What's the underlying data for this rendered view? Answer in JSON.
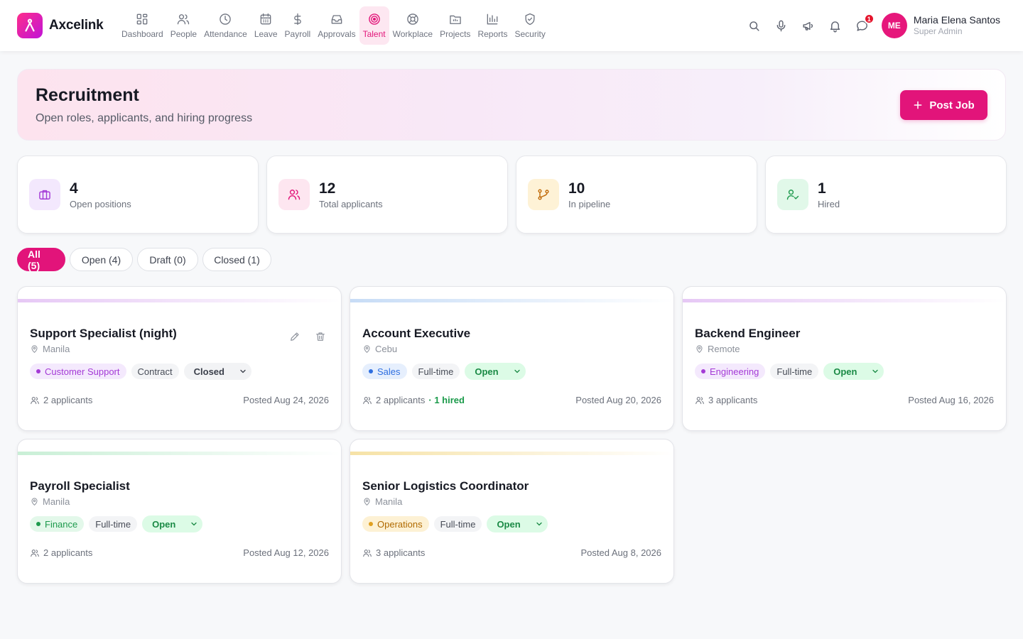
{
  "brand": {
    "name": "Axcelink"
  },
  "nav": [
    {
      "label": "Dashboard",
      "icon": "dashboard-icon"
    },
    {
      "label": "People",
      "icon": "people-icon"
    },
    {
      "label": "Attendance",
      "icon": "clock-icon"
    },
    {
      "label": "Leave",
      "icon": "calendar-icon"
    },
    {
      "label": "Payroll",
      "icon": "dollar-icon"
    },
    {
      "label": "Approvals",
      "icon": "inbox-icon"
    },
    {
      "label": "Talent",
      "icon": "target-icon",
      "active": true
    },
    {
      "label": "Workplace",
      "icon": "lifebuoy-icon"
    },
    {
      "label": "Projects",
      "icon": "folder-icon"
    },
    {
      "label": "Reports",
      "icon": "bar-chart-icon"
    },
    {
      "label": "Security",
      "icon": "shield-check-icon"
    }
  ],
  "topbar": {
    "message_badge": "1",
    "user": {
      "initials": "ME",
      "name": "Maria Elena Santos",
      "role": "Super Admin"
    }
  },
  "hero": {
    "title": "Recruitment",
    "subtitle": "Open roles, applicants, and hiring progress",
    "post_button": "Post Job"
  },
  "stats": [
    {
      "value": "4",
      "label": "Open positions",
      "icon": "briefcase-icon",
      "color": "#a43ad6",
      "bg": "#f3e8fd"
    },
    {
      "value": "12",
      "label": "Total applicants",
      "icon": "users-icon",
      "color": "#e2147a",
      "bg": "#fde6f0"
    },
    {
      "value": "10",
      "label": "In pipeline",
      "icon": "git-branch-icon",
      "color": "#c06a08",
      "bg": "#fef2d6"
    },
    {
      "value": "1",
      "label": "Hired",
      "icon": "user-check-icon",
      "color": "#1e9a4d",
      "bg": "#e1f8e9"
    }
  ],
  "filters": [
    {
      "label": "All (5)",
      "active": true
    },
    {
      "label": "Open (4)"
    },
    {
      "label": "Draft (0)"
    },
    {
      "label": "Closed (1)"
    }
  ],
  "jobs": [
    {
      "title": "Support Specialist (night)",
      "location": "Manila",
      "department": "Customer Support",
      "dept_color": "#a43ad6",
      "dept_bg": "#f4e9fd",
      "type": "Contract",
      "status": "Closed",
      "applicants": "2 applicants",
      "hired": "",
      "posted": "Posted Aug 24, 2026",
      "accent": "#e6c8f5",
      "show_actions": true
    },
    {
      "title": "Account Executive",
      "location": "Cebu",
      "department": "Sales",
      "dept_color": "#2f6fe0",
      "dept_bg": "#e6effd",
      "type": "Full-time",
      "status": "Open",
      "applicants": "2 applicants",
      "hired": " · 1 hired",
      "posted": "Posted Aug 20, 2026",
      "accent": "#c7dcf6",
      "show_actions": false
    },
    {
      "title": "Backend Engineer",
      "location": "Remote",
      "department": "Engineering",
      "dept_color": "#a43ad6",
      "dept_bg": "#f4e9fd",
      "type": "Full-time",
      "status": "Open",
      "applicants": "3 applicants",
      "hired": "",
      "posted": "Posted Aug 16, 2026",
      "accent": "#e6c8f5",
      "show_actions": false
    },
    {
      "title": "Payroll Specialist",
      "location": "Manila",
      "department": "Finance",
      "dept_color": "#1e9a4d",
      "dept_bg": "#e3f8ea",
      "type": "Full-time",
      "status": "Open",
      "applicants": "2 applicants",
      "hired": "",
      "posted": "Posted Aug 12, 2026",
      "accent": "#c9efd6",
      "show_actions": false
    },
    {
      "title": "Senior Logistics Coordinator",
      "location": "Manila",
      "department": "Operations",
      "dept_color": "#b06a00",
      "dept_bg": "#fdf1d4",
      "type": "Full-time",
      "status": "Open",
      "applicants": "3 applicants",
      "hired": "",
      "posted": "Posted Aug 8, 2026",
      "accent": "#f6e2a6",
      "show_actions": false
    }
  ]
}
